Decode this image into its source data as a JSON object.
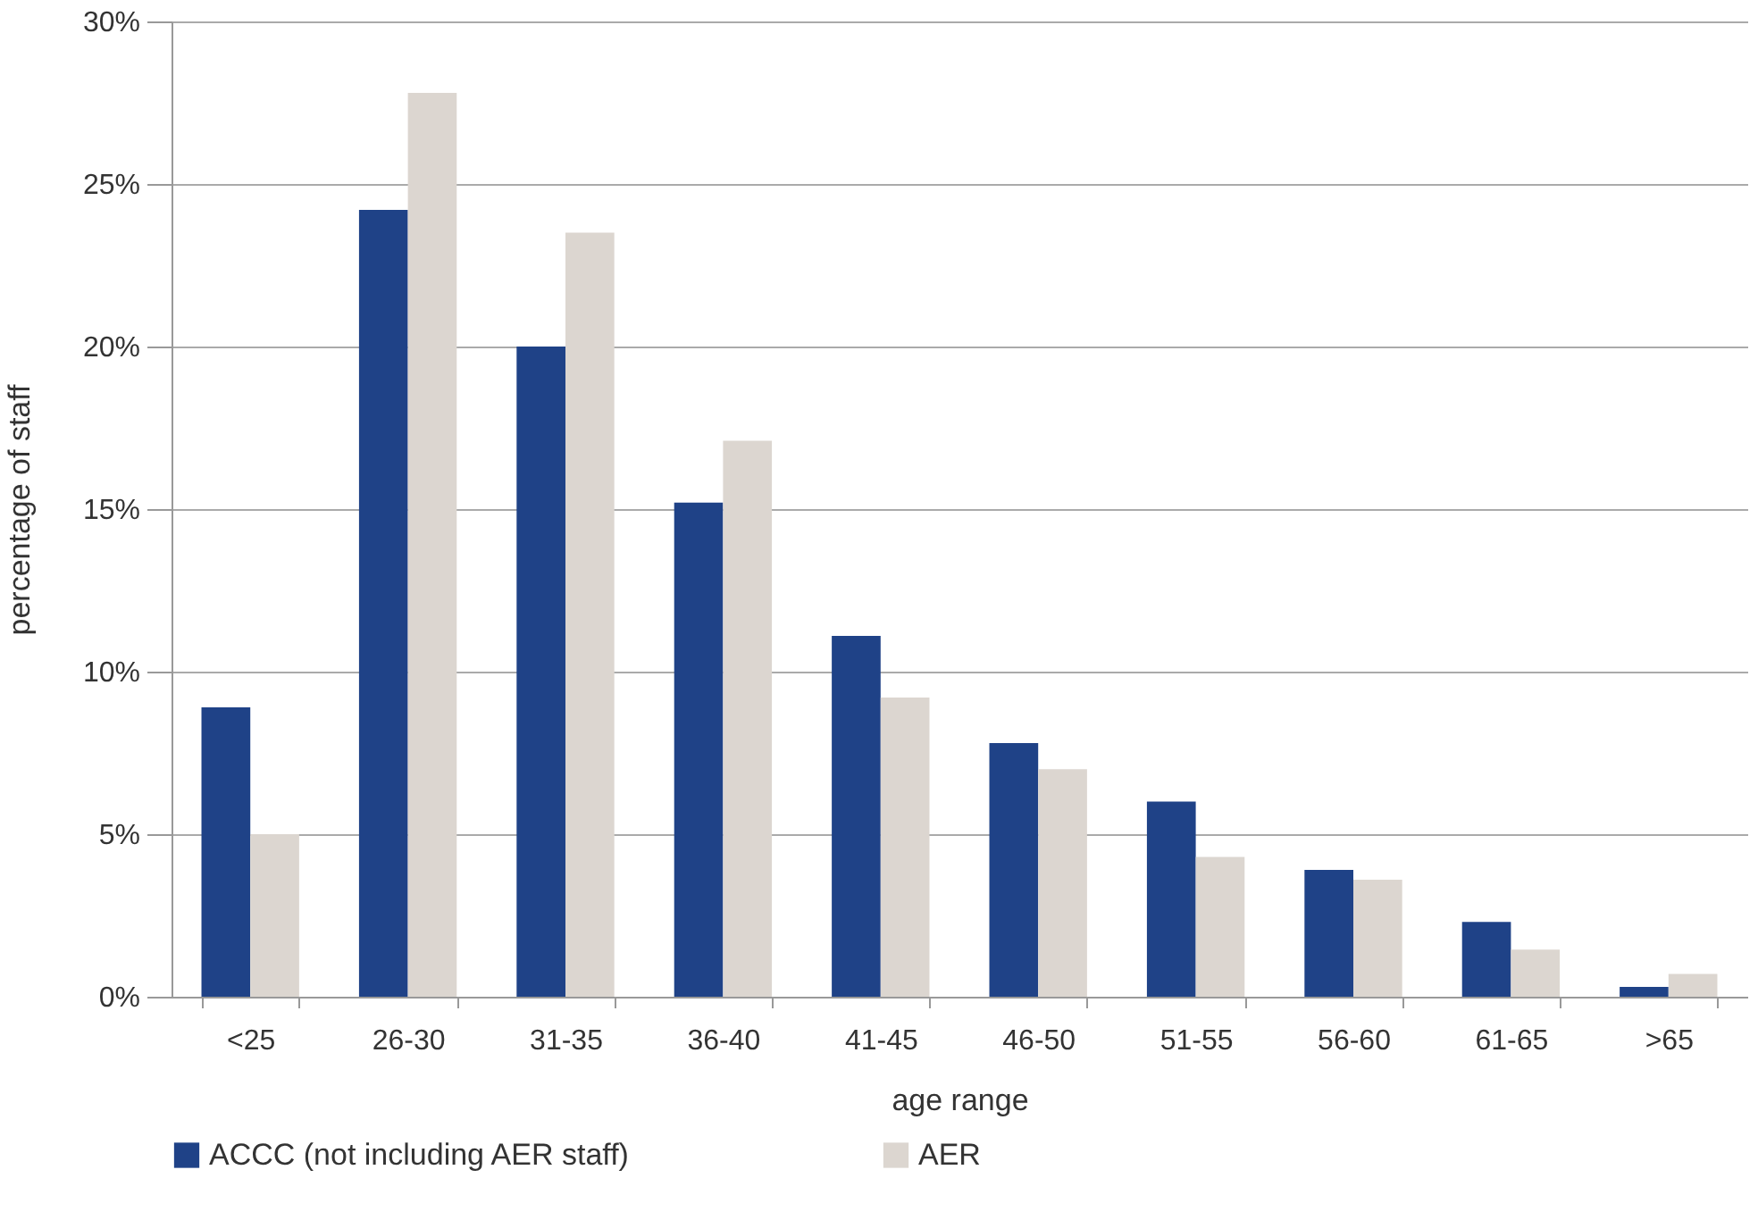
{
  "chart_data": {
    "type": "bar",
    "xlabel": "age range",
    "ylabel": "percentage of staff",
    "categories": [
      "<25",
      "26-30",
      "31-35",
      "36-40",
      "41-45",
      "46-50",
      "51-55",
      "56-60",
      "61-65",
      ">65"
    ],
    "series": [
      {
        "name": "ACCC (not including AER staff)",
        "color": "#1f4287",
        "values": [
          8.9,
          24.2,
          20.0,
          15.2,
          11.1,
          7.8,
          6.0,
          3.9,
          2.3,
          0.3
        ]
      },
      {
        "name": "AER",
        "color": "#dcd6d0",
        "values": [
          5.0,
          27.8,
          23.5,
          17.1,
          9.2,
          7.0,
          4.3,
          3.6,
          1.45,
          0.7
        ]
      }
    ],
    "ylim": [
      0,
      30
    ],
    "yticks": [
      {
        "value": 0,
        "label": "0%"
      },
      {
        "value": 5,
        "label": "5%"
      },
      {
        "value": 10,
        "label": "10%"
      },
      {
        "value": 15,
        "label": "15%"
      },
      {
        "value": 20,
        "label": "20%"
      },
      {
        "value": 25,
        "label": "25%"
      },
      {
        "value": 30,
        "label": "30%"
      }
    ],
    "grid": "y",
    "legend": "bottom"
  }
}
